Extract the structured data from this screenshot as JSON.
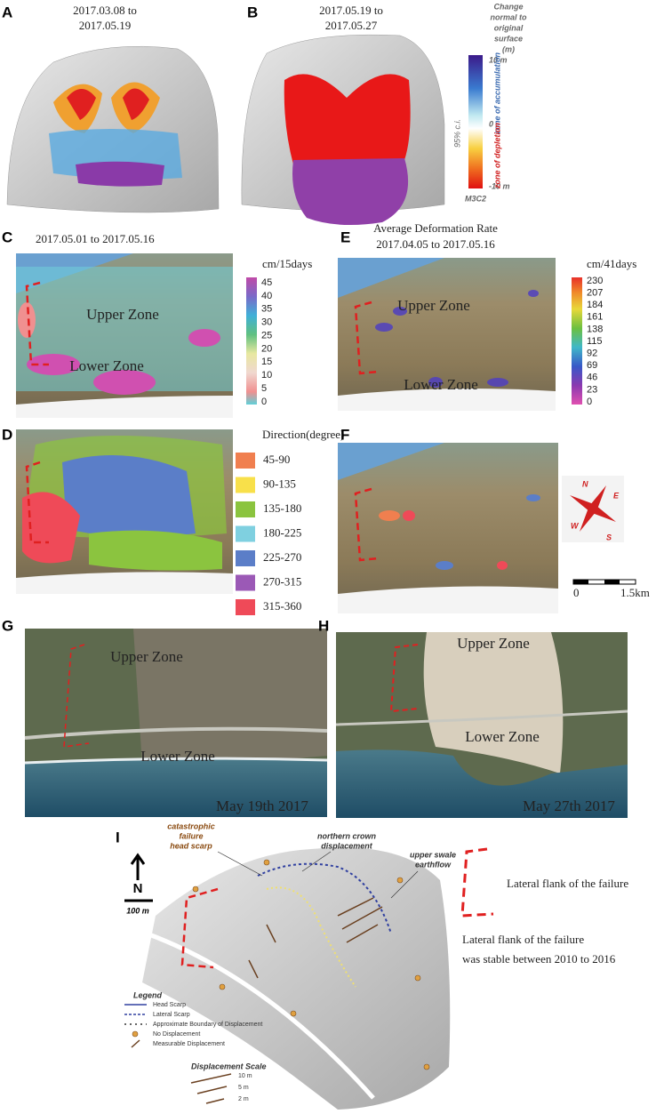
{
  "panels": {
    "a": {
      "label": "A",
      "title": [
        "2017.03.08 to",
        "2017.05.19"
      ]
    },
    "b": {
      "label": "B",
      "title": [
        "2017.05.19 to",
        "2017.05.27"
      ],
      "colorbar": {
        "title": [
          "Change",
          "normal to",
          "original",
          "surface",
          "(m)"
        ],
        "top": "10 m",
        "mid": "0",
        "bottom": "-10 m",
        "upper_note": "zone of accumulation",
        "lower_note": "zone of depletion",
        "ci": "95% c.i.",
        "method": "M3C2"
      }
    },
    "c": {
      "label": "C",
      "title": "2017.05.01 to 2017.05.16",
      "unit": "cm/15days",
      "ticks": [
        "45",
        "40",
        "35",
        "30",
        "25",
        "20",
        "15",
        "10",
        "5",
        "0"
      ],
      "zones": [
        "Upper Zone",
        "Lower Zone"
      ]
    },
    "d": {
      "label": "D",
      "legend_title": "Direction(degree)",
      "legend": [
        {
          "label": "45-90",
          "color": "#f07f4f"
        },
        {
          "label": "90-135",
          "color": "#f8e04a"
        },
        {
          "label": "135-180",
          "color": "#8bc43f"
        },
        {
          "label": "180-225",
          "color": "#7fd0e0"
        },
        {
          "label": "225-270",
          "color": "#5b7ec8"
        },
        {
          "label": "270-315",
          "color": "#9b59b6"
        },
        {
          "label": "315-360",
          "color": "#ef4a58"
        }
      ]
    },
    "e": {
      "label": "E",
      "title": [
        "Average Deformation Rate",
        "2017.04.05 to 2017.05.16"
      ],
      "unit": "cm/41days",
      "ticks": [
        "230",
        "207",
        "184",
        "161",
        "138",
        "115",
        "92",
        "69",
        "46",
        "23",
        "0"
      ],
      "zones": [
        "Upper Zone",
        "Lower Zone"
      ]
    },
    "f": {
      "label": "F",
      "compass": [
        "N",
        "E",
        "S",
        "W"
      ],
      "scale": [
        "0",
        "1.5km"
      ]
    },
    "g": {
      "label": "G",
      "zones": [
        "Upper Zone",
        "Lower Zone"
      ],
      "date": "May 19th 2017"
    },
    "h": {
      "label": "H",
      "zones": [
        "Upper Zone",
        "Lower Zone"
      ],
      "date": "May 27th 2017"
    },
    "i": {
      "label": "I",
      "annotations": [
        [
          "catastrophic",
          "failure",
          "head scarp"
        ],
        [
          "northern crown",
          "displacement"
        ],
        [
          "upper swale",
          "earthflow"
        ]
      ],
      "north": "N",
      "scale": "100 m",
      "legend": {
        "title": "Legend",
        "items": [
          "Head Scarp",
          "Lateral Scarp",
          "Approximate Boundary of Displacement",
          "No Displacement",
          "Measurable Displacement"
        ]
      },
      "displacement_scale": {
        "title": "Displacement Scale",
        "items": [
          "10 m",
          "5 m",
          "2 m"
        ]
      }
    }
  },
  "notes": {
    "flank": "Lateral flank of the failure",
    "stable": [
      "Lateral flank of the failure",
      "was stable between 2010 to 2016"
    ]
  }
}
